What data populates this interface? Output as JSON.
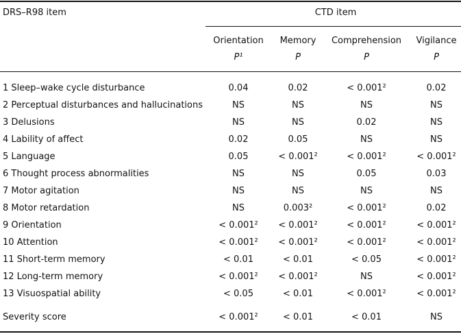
{
  "header": {
    "item_column": "DRS–R98 item",
    "group": "CTD item",
    "columns": [
      {
        "name": "Orientation",
        "stat": "P¹"
      },
      {
        "name": "Memory",
        "stat": "P"
      },
      {
        "name": "Comprehension",
        "stat": "P"
      },
      {
        "name": "Vigilance",
        "stat": "P"
      }
    ]
  },
  "table": {
    "rows": [
      {
        "label": "1 Sleep–wake cycle disturbance",
        "cells": [
          "0.04",
          "0.02",
          "< 0.001²",
          "0.02"
        ]
      },
      {
        "label": "2 Perceptual disturbances and hallucinations",
        "cells": [
          "NS",
          "NS",
          "NS",
          "NS"
        ]
      },
      {
        "label": "3 Delusions",
        "cells": [
          "NS",
          "NS",
          "0.02",
          "NS"
        ]
      },
      {
        "label": "4 Lability of affect",
        "cells": [
          "0.02",
          "0.05",
          "NS",
          "NS"
        ]
      },
      {
        "label": "5 Language",
        "cells": [
          "0.05",
          "< 0.001²",
          "< 0.001²",
          "< 0.001²"
        ]
      },
      {
        "label": "6 Thought process abnormalities",
        "cells": [
          "NS",
          "NS",
          "0.05",
          "0.03"
        ]
      },
      {
        "label": "7 Motor agitation",
        "cells": [
          "NS",
          "NS",
          "NS",
          "NS"
        ]
      },
      {
        "label": "8 Motor retardation",
        "cells": [
          "NS",
          "0.003²",
          "< 0.001²",
          "0.02"
        ]
      },
      {
        "label": "9 Orientation",
        "cells": [
          "< 0.001²",
          "< 0.001²",
          "< 0.001²",
          "< 0.001²"
        ]
      },
      {
        "label": "10 Attention",
        "cells": [
          "< 0.001²",
          "< 0.001²",
          "< 0.001²",
          "< 0.001²"
        ]
      },
      {
        "label": "11 Short-term memory",
        "cells": [
          "< 0.01",
          "< 0.01",
          "< 0.05",
          "< 0.001²"
        ]
      },
      {
        "label": "12 Long-term memory",
        "cells": [
          "< 0.001²",
          "< 0.001²",
          "NS",
          "< 0.001²"
        ]
      },
      {
        "label": "13 Visuospatial ability",
        "cells": [
          "< 0.05",
          "< 0.01",
          "< 0.001²",
          "< 0.001²"
        ]
      }
    ],
    "total": {
      "label": "Severity score",
      "cells": [
        "< 0.001²",
        "< 0.01",
        "< 0.01",
        "NS"
      ]
    }
  }
}
